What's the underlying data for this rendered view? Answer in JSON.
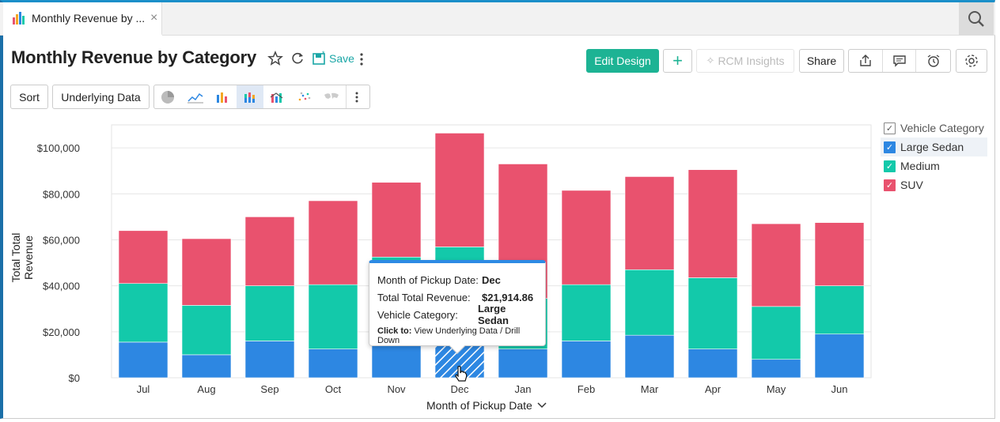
{
  "tab": {
    "label": "Monthly Revenue by ...",
    "close": "×"
  },
  "header": {
    "title": "Monthly Revenue by Category",
    "save_label": "Save",
    "edit_design": "Edit Design",
    "add": "+",
    "rcm_insights": "RCM Insights",
    "share": "Share"
  },
  "toolbar": {
    "sort": "Sort",
    "underlying_data": "Underlying Data"
  },
  "colors": {
    "large_sedan": "#2d87e2",
    "medium": "#13c9aa",
    "suv": "#e9526e",
    "accent": "#1db394"
  },
  "legend": {
    "header": "Vehicle Category",
    "items": [
      {
        "label": "Large Sedan"
      },
      {
        "label": "Medium"
      },
      {
        "label": "SUV"
      }
    ]
  },
  "tooltip": {
    "k1": "Month of Pickup Date:",
    "v1": "Dec",
    "k2": "Total Total Revenue:",
    "v2": "$21,914.86",
    "k3": "Vehicle Category:",
    "v3": "Large Sedan",
    "click_prefix": "Click to:",
    "click_text": "View Underlying Data / Drill Down"
  },
  "chart_data": {
    "type": "bar",
    "stacked": true,
    "categories": [
      "Jul",
      "Aug",
      "Sep",
      "Oct",
      "Nov",
      "Dec",
      "Jan",
      "Feb",
      "Mar",
      "Apr",
      "May",
      "Jun"
    ],
    "series": [
      {
        "name": "Large Sedan",
        "values": [
          15500,
          10000,
          16000,
          12500,
          16500,
          21914.86,
          12500,
          16000,
          18500,
          12500,
          8000,
          19000
        ]
      },
      {
        "name": "Medium",
        "values": [
          25500,
          21500,
          24000,
          28000,
          36000,
          35000,
          22000,
          24500,
          28500,
          31000,
          23000,
          21000
        ]
      },
      {
        "name": "SUV",
        "values": [
          23000,
          29000,
          30000,
          36500,
          32500,
          49500,
          58500,
          41000,
          40500,
          47000,
          36000,
          27500
        ]
      }
    ],
    "ylim": [
      0,
      110000
    ],
    "yticks": [
      "$0",
      "$20,000",
      "$40,000",
      "$60,000",
      "$80,000",
      "$100,000"
    ],
    "xlabel": "Month of Pickup Date",
    "ylabel": "Total Total Revenue",
    "highlighted": {
      "category": "Dec",
      "series": "Large Sedan"
    },
    "legend_position": "right",
    "grid": true
  }
}
